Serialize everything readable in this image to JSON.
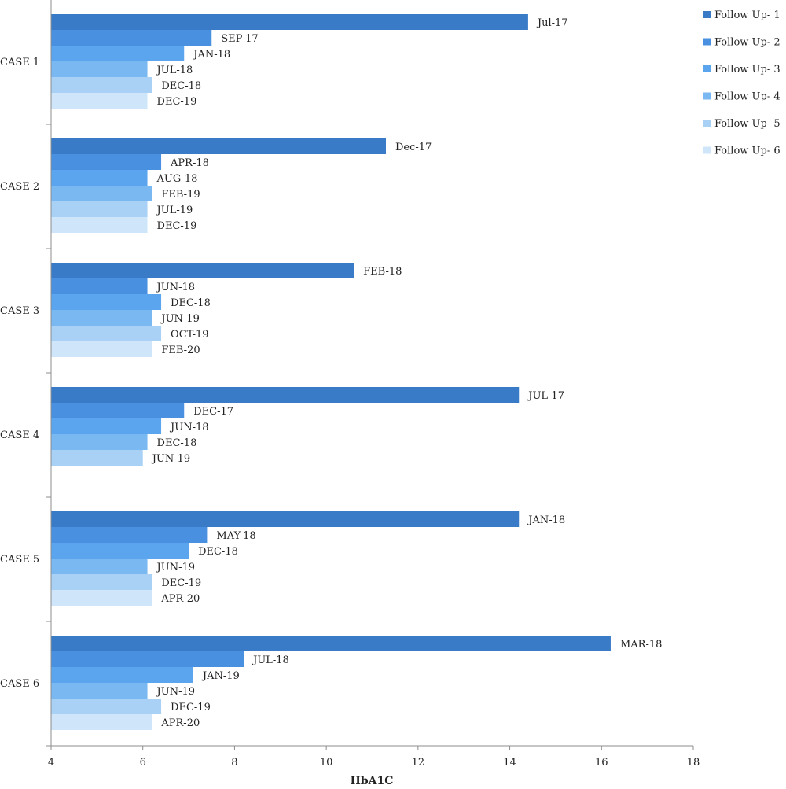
{
  "chart_data": {
    "type": "bar",
    "orientation": "horizontal",
    "title": "",
    "xlabel": "HbA1C",
    "ylabel": "",
    "xlim": [
      4,
      18
    ],
    "xticks": [
      4,
      6,
      8,
      10,
      12,
      14,
      16,
      18
    ],
    "grid": false,
    "legend_position": "top-right",
    "series_colors": [
      "#3a7bc8",
      "#4a90e0",
      "#5aa5ee",
      "#7ab8f2",
      "#a8d1f5",
      "#cfe6fa"
    ],
    "series": [
      {
        "name": "Follow Up- 1"
      },
      {
        "name": "Follow Up- 2"
      },
      {
        "name": "Follow Up- 3"
      },
      {
        "name": "Follow Up- 4"
      },
      {
        "name": "Follow Up- 5"
      },
      {
        "name": "Follow Up- 6"
      }
    ],
    "categories": [
      {
        "name": "CASE 1",
        "bars": [
          {
            "value": 14.4,
            "label": "Jul-17"
          },
          {
            "value": 7.5,
            "label": "SEP-17"
          },
          {
            "value": 6.9,
            "label": "JAN-18"
          },
          {
            "value": 6.1,
            "label": "JUL-18"
          },
          {
            "value": 6.2,
            "label": "DEC-18"
          },
          {
            "value": 6.1,
            "label": "DEC-19"
          }
        ]
      },
      {
        "name": "CASE 2",
        "bars": [
          {
            "value": 11.3,
            "label": "Dec-17"
          },
          {
            "value": 6.4,
            "label": "APR-18"
          },
          {
            "value": 6.1,
            "label": "AUG-18"
          },
          {
            "value": 6.2,
            "label": "FEB-19"
          },
          {
            "value": 6.1,
            "label": "JUL-19"
          },
          {
            "value": 6.1,
            "label": "DEC-19"
          }
        ]
      },
      {
        "name": "CASE 3",
        "bars": [
          {
            "value": 10.6,
            "label": "FEB-18"
          },
          {
            "value": 6.1,
            "label": "JUN-18"
          },
          {
            "value": 6.4,
            "label": "DEC-18"
          },
          {
            "value": 6.2,
            "label": "JUN-19"
          },
          {
            "value": 6.4,
            "label": "OCT-19"
          },
          {
            "value": 6.2,
            "label": "FEB-20"
          }
        ]
      },
      {
        "name": "CASE 4",
        "bars": [
          {
            "value": 14.2,
            "label": "JUL-17"
          },
          {
            "value": 6.9,
            "label": "DEC-17"
          },
          {
            "value": 6.4,
            "label": "JUN-18"
          },
          {
            "value": 6.1,
            "label": "DEC-18"
          },
          {
            "value": 6.0,
            "label": "JUN-19"
          }
        ]
      },
      {
        "name": "CASE 5",
        "bars": [
          {
            "value": 14.2,
            "label": "JAN-18"
          },
          {
            "value": 7.4,
            "label": "MAY-18"
          },
          {
            "value": 7.0,
            "label": "DEC-18"
          },
          {
            "value": 6.1,
            "label": "JUN-19"
          },
          {
            "value": 6.2,
            "label": "DEC-19"
          },
          {
            "value": 6.2,
            "label": "APR-20"
          }
        ]
      },
      {
        "name": "CASE 6",
        "bars": [
          {
            "value": 16.2,
            "label": "MAR-18"
          },
          {
            "value": 8.2,
            "label": "JUL-18"
          },
          {
            "value": 7.1,
            "label": "JAN-19"
          },
          {
            "value": 6.1,
            "label": "JUN-19"
          },
          {
            "value": 6.4,
            "label": "DEC-19"
          },
          {
            "value": 6.2,
            "label": "APR-20"
          }
        ]
      }
    ]
  }
}
